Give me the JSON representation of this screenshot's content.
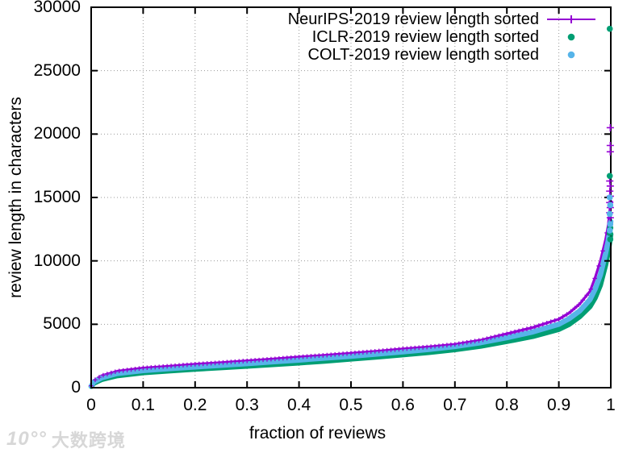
{
  "watermark": {
    "logo": "10°°",
    "brand": "大数跨境"
  },
  "chart_data": {
    "type": "line",
    "title": "",
    "xlabel": "fraction of reviews",
    "ylabel": "review length in characters",
    "xlim": [
      0,
      1
    ],
    "ylim": [
      0,
      30000
    ],
    "grid": true,
    "legend_position": "top-right-inside",
    "background_color": "#ffffff",
    "border_color": "#000000",
    "grid_color": "#9a9a9a",
    "x_tick_labels": [
      "0",
      "0.1",
      "0.2",
      "0.3",
      "0.4",
      "0.5",
      "0.6",
      "0.7",
      "0.8",
      "0.9",
      "1"
    ],
    "x_tick_values": [
      0,
      0.1,
      0.2,
      0.3,
      0.4,
      0.5,
      0.6,
      0.7,
      0.8,
      0.9,
      1
    ],
    "y_tick_labels": [
      "0",
      "5000",
      "10000",
      "15000",
      "20000",
      "25000",
      "30000"
    ],
    "y_tick_values": [
      0,
      5000,
      10000,
      15000,
      20000,
      25000,
      30000
    ],
    "series": [
      {
        "id": "neurips",
        "name": "NeurIPS-2019 review length sorted",
        "color": "#9400d3",
        "style": "linespoints",
        "marker": "plus",
        "line_width": 3.2,
        "x": [
          0,
          0.005,
          0.02,
          0.05,
          0.1,
          0.15,
          0.2,
          0.25,
          0.3,
          0.35,
          0.4,
          0.45,
          0.5,
          0.55,
          0.6,
          0.65,
          0.7,
          0.75,
          0.8,
          0.85,
          0.9,
          0.92,
          0.94,
          0.96,
          0.97,
          0.98,
          0.99,
          0.995,
          1.0
        ],
        "y": [
          150,
          550,
          950,
          1300,
          1550,
          1700,
          1850,
          1980,
          2120,
          2260,
          2420,
          2560,
          2720,
          2880,
          3060,
          3220,
          3420,
          3750,
          4250,
          4750,
          5400,
          5900,
          6600,
          7600,
          8700,
          10000,
          11700,
          12800,
          14700
        ],
        "outliers": [
          [
            0.999,
            20500
          ],
          [
            0.999,
            19100
          ],
          [
            0.999,
            18600
          ],
          [
            0.998,
            16300
          ],
          [
            0.999,
            15900
          ],
          [
            0.998,
            15500
          ],
          [
            0.999,
            15100
          ],
          [
            0.998,
            14600
          ],
          [
            0.999,
            14200
          ],
          [
            0.998,
            13800
          ],
          [
            0.999,
            13400
          ]
        ]
      },
      {
        "id": "iclr",
        "name": "ICLR-2019 review length sorted",
        "color": "#009e73",
        "style": "points",
        "marker": "circle",
        "line_width": 6.5,
        "x": [
          0,
          0.005,
          0.02,
          0.05,
          0.1,
          0.15,
          0.2,
          0.25,
          0.3,
          0.35,
          0.4,
          0.45,
          0.5,
          0.55,
          0.6,
          0.65,
          0.7,
          0.75,
          0.8,
          0.85,
          0.9,
          0.92,
          0.94,
          0.96,
          0.97,
          0.98,
          0.99,
          0.995,
          1.0
        ],
        "y": [
          100,
          350,
          650,
          950,
          1180,
          1330,
          1460,
          1580,
          1700,
          1830,
          1960,
          2100,
          2260,
          2420,
          2600,
          2780,
          3000,
          3280,
          3650,
          4050,
          4600,
          5000,
          5600,
          6400,
          7100,
          8100,
          9700,
          10700,
          12100
        ],
        "outliers": [
          [
            0.998,
            28300
          ],
          [
            0.998,
            16700
          ],
          [
            0.999,
            12600
          ],
          [
            0.998,
            12200
          ],
          [
            0.999,
            11700
          ]
        ]
      },
      {
        "id": "colt",
        "name": "COLT-2019 review length sorted",
        "color": "#56b4e9",
        "style": "points",
        "marker": "circle",
        "line_width": 6.5,
        "x": [
          0,
          0.005,
          0.02,
          0.05,
          0.1,
          0.15,
          0.2,
          0.25,
          0.3,
          0.35,
          0.4,
          0.45,
          0.5,
          0.55,
          0.6,
          0.65,
          0.7,
          0.75,
          0.8,
          0.85,
          0.9,
          0.92,
          0.94,
          0.96,
          0.97,
          0.98,
          0.99,
          0.995,
          1.0
        ],
        "y": [
          120,
          450,
          780,
          1120,
          1350,
          1500,
          1640,
          1760,
          1900,
          2040,
          2180,
          2330,
          2480,
          2650,
          2830,
          3020,
          3250,
          3550,
          3950,
          4400,
          5000,
          5450,
          6050,
          6950,
          7800,
          8900,
          10600,
          11600,
          13100
        ],
        "outliers": [
          [
            0.998,
            15000
          ],
          [
            0.999,
            14400
          ],
          [
            0.998,
            13700
          ],
          [
            0.999,
            12900
          ],
          [
            0.998,
            12400
          ]
        ]
      }
    ]
  }
}
